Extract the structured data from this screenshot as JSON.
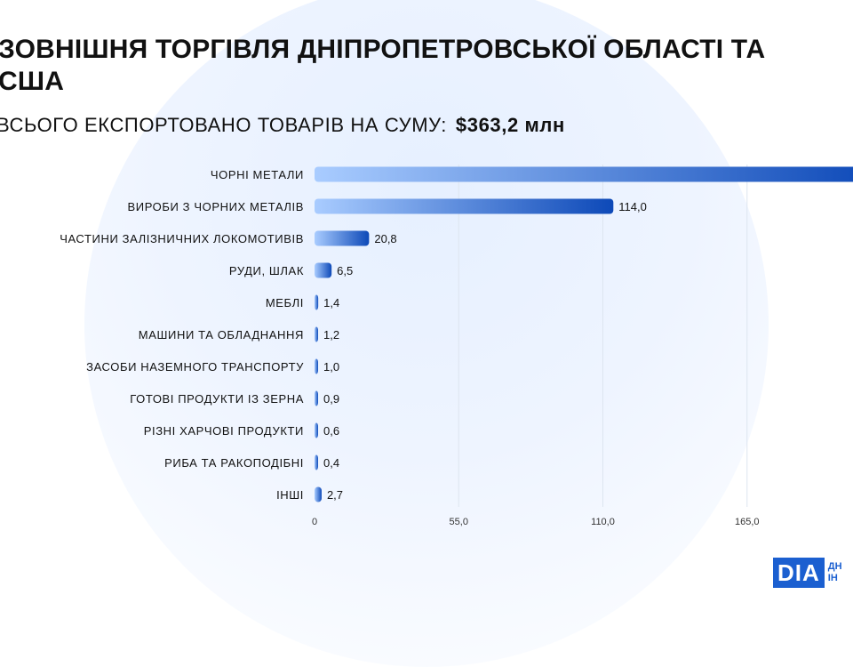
{
  "header": {
    "title": "ЗОВНІШНЯ ТОРГІВЛЯ ДНІПРОПЕТРОВСЬКОЇ ОБЛАСТІ ТА\nСША",
    "subtitle_label": "ВСЬОГО ЕКСПОРТОВАНО ТОВАРІВ НА СУМУ:",
    "subtitle_amount": "$363,2 млн"
  },
  "logo": {
    "mark": "DIA",
    "text": "ДН\nІН"
  },
  "colors": {
    "bar_start": "#a9ccff",
    "bar_end": "#0d49b8",
    "grid": "#dde5f0",
    "text": "#111111"
  },
  "chart_data": {
    "type": "bar",
    "orientation": "horizontal",
    "categories": [
      "ЧОРНІ МЕТАЛИ",
      "ВИРОБИ З ЧОРНИХ МЕТАЛІВ",
      "ЧАСТИНИ ЗАЛІЗНИЧНИХ ЛОКОМОТИВІВ",
      "РУДИ, ШЛАК",
      "МЕБЛІ",
      "МАШИНИ ТА ОБЛАДНАННЯ",
      "ЗАСОБИ НАЗЕМНОГО ТРАНСПОРТУ",
      "ГОТОВІ ПРОДУКТИ ІЗ ЗЕРНА",
      "РІЗНІ ХАРЧОВІ ПРОДУКТИ",
      "РИБА ТА РАКОПОДІБНІ",
      "ІНШІ"
    ],
    "values": [
      214.0,
      114.0,
      20.8,
      6.5,
      1.4,
      1.2,
      1.0,
      0.9,
      0.6,
      0.4,
      2.7
    ],
    "value_labels": [
      "",
      "114,0",
      "20,8",
      "6,5",
      "1,4",
      "1,2",
      "1,0",
      "0,9",
      "0,6",
      "0,4",
      "2,7"
    ],
    "xticks": [
      0,
      55,
      110,
      165
    ],
    "xtick_labels": [
      "0",
      "55,0",
      "110,0",
      "165,0"
    ],
    "grid": true
  }
}
